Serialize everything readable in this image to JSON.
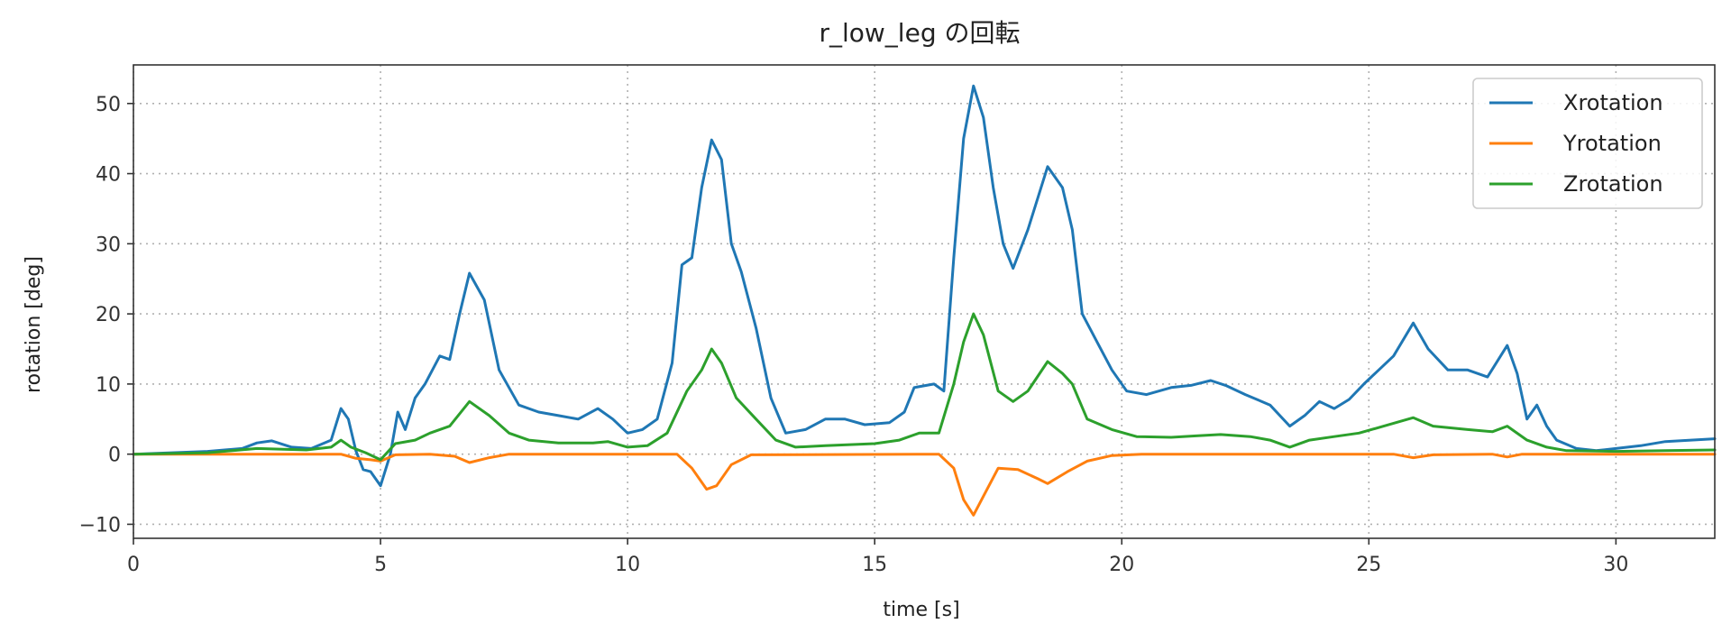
{
  "chart_data": {
    "type": "line",
    "title": "r_low_leg の回転",
    "xlabel": "time [s]",
    "ylabel": "rotation [deg]",
    "xlim": [
      0,
      32
    ],
    "ylim": [
      -12,
      55.5
    ],
    "xticks": [
      0,
      5,
      10,
      15,
      20,
      25,
      30
    ],
    "yticks": [
      -10,
      0,
      10,
      20,
      30,
      40,
      50
    ],
    "grid": true,
    "legend_position": "top-right",
    "series": [
      {
        "name": "Xrotation",
        "color": "#1f77b4",
        "points": [
          [
            0,
            0
          ],
          [
            1.5,
            0.4
          ],
          [
            2.2,
            0.8
          ],
          [
            2.5,
            1.6
          ],
          [
            2.8,
            1.9
          ],
          [
            3.2,
            1.0
          ],
          [
            3.6,
            0.8
          ],
          [
            4.0,
            2.0
          ],
          [
            4.2,
            6.5
          ],
          [
            4.35,
            5.0
          ],
          [
            4.5,
            0.5
          ],
          [
            4.65,
            -2.2
          ],
          [
            4.8,
            -2.5
          ],
          [
            5.0,
            -4.5
          ],
          [
            5.2,
            0.0
          ],
          [
            5.35,
            6.0
          ],
          [
            5.5,
            3.5
          ],
          [
            5.7,
            8.0
          ],
          [
            5.9,
            10.0
          ],
          [
            6.2,
            14.0
          ],
          [
            6.4,
            13.5
          ],
          [
            6.6,
            20.0
          ],
          [
            6.8,
            25.8
          ],
          [
            7.1,
            22.0
          ],
          [
            7.4,
            12.0
          ],
          [
            7.8,
            7.0
          ],
          [
            8.2,
            6.0
          ],
          [
            8.6,
            5.5
          ],
          [
            9.0,
            5.0
          ],
          [
            9.4,
            6.5
          ],
          [
            9.7,
            5.0
          ],
          [
            10.0,
            3.0
          ],
          [
            10.3,
            3.5
          ],
          [
            10.6,
            5.0
          ],
          [
            10.9,
            13.0
          ],
          [
            11.1,
            27.0
          ],
          [
            11.3,
            28.0
          ],
          [
            11.5,
            38.0
          ],
          [
            11.7,
            44.8
          ],
          [
            11.9,
            42.0
          ],
          [
            12.1,
            30.0
          ],
          [
            12.3,
            26.0
          ],
          [
            12.6,
            18.0
          ],
          [
            12.9,
            8.0
          ],
          [
            13.2,
            3.0
          ],
          [
            13.6,
            3.5
          ],
          [
            14.0,
            5.0
          ],
          [
            14.4,
            5.0
          ],
          [
            14.8,
            4.2
          ],
          [
            15.3,
            4.5
          ],
          [
            15.6,
            6.0
          ],
          [
            15.8,
            9.5
          ],
          [
            16.2,
            10.0
          ],
          [
            16.4,
            9.0
          ],
          [
            16.6,
            28.0
          ],
          [
            16.8,
            45.0
          ],
          [
            17.0,
            52.5
          ],
          [
            17.2,
            48.0
          ],
          [
            17.4,
            38.0
          ],
          [
            17.6,
            30.0
          ],
          [
            17.8,
            26.5
          ],
          [
            18.1,
            32.0
          ],
          [
            18.5,
            41.0
          ],
          [
            18.8,
            38.0
          ],
          [
            19.0,
            32.0
          ],
          [
            19.2,
            20.0
          ],
          [
            19.5,
            16.0
          ],
          [
            19.8,
            12.0
          ],
          [
            20.1,
            9.0
          ],
          [
            20.5,
            8.5
          ],
          [
            21.0,
            9.5
          ],
          [
            21.4,
            9.8
          ],
          [
            21.8,
            10.5
          ],
          [
            22.1,
            9.8
          ],
          [
            22.5,
            8.5
          ],
          [
            23.0,
            7.0
          ],
          [
            23.4,
            4.0
          ],
          [
            23.7,
            5.5
          ],
          [
            24.0,
            7.5
          ],
          [
            24.3,
            6.5
          ],
          [
            24.6,
            7.8
          ],
          [
            24.9,
            10.0
          ],
          [
            25.2,
            12.0
          ],
          [
            25.5,
            14.0
          ],
          [
            25.9,
            18.7
          ],
          [
            26.2,
            15.0
          ],
          [
            26.6,
            12.0
          ],
          [
            27.0,
            12.0
          ],
          [
            27.4,
            11.0
          ],
          [
            27.8,
            15.5
          ],
          [
            28.0,
            11.5
          ],
          [
            28.2,
            5.0
          ],
          [
            28.4,
            7.0
          ],
          [
            28.6,
            4.0
          ],
          [
            28.8,
            2.0
          ],
          [
            29.2,
            0.8
          ],
          [
            29.6,
            0.5
          ],
          [
            30.0,
            0.8
          ],
          [
            30.5,
            1.2
          ],
          [
            31.0,
            1.8
          ],
          [
            32.0,
            2.2
          ]
        ]
      },
      {
        "name": "Yrotation",
        "color": "#ff7f0e",
        "points": [
          [
            0,
            0
          ],
          [
            4.2,
            0
          ],
          [
            4.5,
            -0.6
          ],
          [
            4.8,
            -0.8
          ],
          [
            5.0,
            -1.0
          ],
          [
            5.3,
            -0.1
          ],
          [
            6.0,
            0
          ],
          [
            6.5,
            -0.3
          ],
          [
            6.8,
            -1.2
          ],
          [
            7.2,
            -0.5
          ],
          [
            7.6,
            0
          ],
          [
            11.0,
            0
          ],
          [
            11.3,
            -2.0
          ],
          [
            11.6,
            -5.0
          ],
          [
            11.8,
            -4.5
          ],
          [
            12.1,
            -1.5
          ],
          [
            12.5,
            -0.1
          ],
          [
            16.3,
            0
          ],
          [
            16.6,
            -2.0
          ],
          [
            16.8,
            -6.5
          ],
          [
            17.0,
            -8.7
          ],
          [
            17.2,
            -6.0
          ],
          [
            17.5,
            -2.0
          ],
          [
            17.9,
            -2.2
          ],
          [
            18.3,
            -3.5
          ],
          [
            18.5,
            -4.2
          ],
          [
            18.9,
            -2.5
          ],
          [
            19.3,
            -1.0
          ],
          [
            19.8,
            -0.2
          ],
          [
            20.4,
            0
          ],
          [
            25.5,
            0
          ],
          [
            25.9,
            -0.5
          ],
          [
            26.3,
            -0.1
          ],
          [
            27.5,
            0
          ],
          [
            27.8,
            -0.4
          ],
          [
            28.1,
            0
          ],
          [
            32.0,
            0
          ]
        ]
      },
      {
        "name": "Zrotation",
        "color": "#2ca02c",
        "points": [
          [
            0,
            0
          ],
          [
            1.5,
            0.2
          ],
          [
            2.5,
            0.8
          ],
          [
            3.5,
            0.6
          ],
          [
            4.0,
            1.0
          ],
          [
            4.2,
            2.0
          ],
          [
            4.4,
            1.0
          ],
          [
            4.7,
            0.2
          ],
          [
            5.0,
            -0.8
          ],
          [
            5.3,
            1.5
          ],
          [
            5.7,
            2.0
          ],
          [
            6.0,
            3.0
          ],
          [
            6.4,
            4.0
          ],
          [
            6.8,
            7.5
          ],
          [
            7.2,
            5.5
          ],
          [
            7.6,
            3.0
          ],
          [
            8.0,
            2.0
          ],
          [
            8.6,
            1.6
          ],
          [
            9.3,
            1.6
          ],
          [
            9.6,
            1.8
          ],
          [
            10.0,
            1.0
          ],
          [
            10.4,
            1.2
          ],
          [
            10.8,
            3.0
          ],
          [
            11.2,
            9.0
          ],
          [
            11.5,
            12.0
          ],
          [
            11.7,
            15.0
          ],
          [
            11.9,
            13.0
          ],
          [
            12.2,
            8.0
          ],
          [
            12.6,
            5.0
          ],
          [
            13.0,
            2.0
          ],
          [
            13.4,
            1.0
          ],
          [
            14.0,
            1.2
          ],
          [
            15.0,
            1.5
          ],
          [
            15.5,
            2.0
          ],
          [
            15.9,
            3.0
          ],
          [
            16.3,
            3.0
          ],
          [
            16.6,
            10.0
          ],
          [
            16.8,
            16.0
          ],
          [
            17.0,
            20.0
          ],
          [
            17.2,
            17.0
          ],
          [
            17.5,
            9.0
          ],
          [
            17.8,
            7.5
          ],
          [
            18.1,
            9.0
          ],
          [
            18.5,
            13.2
          ],
          [
            18.8,
            11.5
          ],
          [
            19.0,
            10.0
          ],
          [
            19.3,
            5.0
          ],
          [
            19.8,
            3.5
          ],
          [
            20.3,
            2.5
          ],
          [
            21.0,
            2.4
          ],
          [
            21.5,
            2.6
          ],
          [
            22.0,
            2.8
          ],
          [
            22.6,
            2.5
          ],
          [
            23.0,
            2.0
          ],
          [
            23.4,
            1.0
          ],
          [
            23.8,
            2.0
          ],
          [
            24.3,
            2.5
          ],
          [
            24.8,
            3.0
          ],
          [
            25.3,
            4.0
          ],
          [
            25.9,
            5.2
          ],
          [
            26.3,
            4.0
          ],
          [
            27.0,
            3.5
          ],
          [
            27.5,
            3.2
          ],
          [
            27.8,
            4.0
          ],
          [
            28.2,
            2.0
          ],
          [
            28.6,
            1.0
          ],
          [
            29.0,
            0.5
          ],
          [
            30.0,
            0.4
          ],
          [
            31.0,
            0.5
          ],
          [
            32.0,
            0.6
          ]
        ]
      }
    ]
  }
}
